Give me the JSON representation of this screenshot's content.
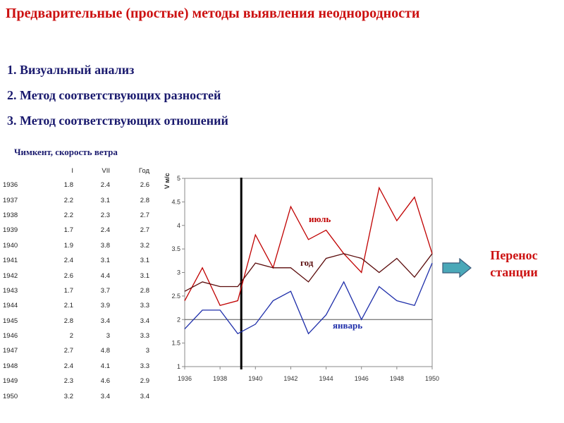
{
  "title": "Предварительные (простые) методы выявления неоднородности",
  "methods": [
    "1. Визуальный анализ",
    "2. Метод соответствующих разностей",
    "3. Метод соответствующих отношений"
  ],
  "table": {
    "title": "Чимкент, скорость ветра",
    "headers": [
      "",
      "I",
      "VII",
      "Год"
    ],
    "rows": [
      [
        "1936",
        "1.8",
        "2.4",
        "2.6"
      ],
      [
        "1937",
        "2.2",
        "3.1",
        "2.8"
      ],
      [
        "1938",
        "2.2",
        "2.3",
        "2.7"
      ],
      [
        "1939",
        "1.7",
        "2.4",
        "2.7"
      ],
      [
        "1940",
        "1.9",
        "3.8",
        "3.2"
      ],
      [
        "1941",
        "2.4",
        "3.1",
        "3.1"
      ],
      [
        "1942",
        "2.6",
        "4.4",
        "3.1"
      ],
      [
        "1943",
        "1.7",
        "3.7",
        "2.8"
      ],
      [
        "1944",
        "2.1",
        "3.9",
        "3.3"
      ],
      [
        "1945",
        "2.8",
        "3.4",
        "3.4"
      ],
      [
        "1946",
        "2",
        "3",
        "3.3"
      ],
      [
        "1947",
        "2.7",
        "4.8",
        "3"
      ],
      [
        "1948",
        "2.4",
        "4.1",
        "3.3"
      ],
      [
        "1949",
        "2.3",
        "4.6",
        "2.9"
      ],
      [
        "1950",
        "3.2",
        "3.4",
        "3.4"
      ]
    ]
  },
  "chart_data": {
    "type": "line",
    "ylabel": "V м/с",
    "x": [
      1936,
      1937,
      1938,
      1939,
      1940,
      1941,
      1942,
      1943,
      1944,
      1945,
      1946,
      1947,
      1948,
      1949,
      1950
    ],
    "xlim": [
      1936,
      1950
    ],
    "ylim": [
      1,
      5
    ],
    "xticks": [
      "1936",
      "1938",
      "1940",
      "1942",
      "1944",
      "1946",
      "1948",
      "1950"
    ],
    "yticks": [
      "1",
      "1.5",
      "2",
      "2.5",
      "3",
      "3.5",
      "4",
      "4.5",
      "5"
    ],
    "series": [
      {
        "name": "июль",
        "color": "#c00000",
        "values": [
          2.4,
          3.1,
          2.3,
          2.4,
          3.8,
          3.1,
          4.4,
          3.7,
          3.9,
          3.4,
          3.0,
          4.8,
          4.1,
          4.6,
          3.4
        ]
      },
      {
        "name": "год",
        "color": "#5a0a0a",
        "values": [
          2.6,
          2.8,
          2.7,
          2.7,
          3.2,
          3.1,
          3.1,
          2.8,
          3.3,
          3.4,
          3.3,
          3.0,
          3.3,
          2.9,
          3.4
        ]
      },
      {
        "name": "январь",
        "color": "#1f2faa",
        "values": [
          1.8,
          2.2,
          2.2,
          1.7,
          1.9,
          2.4,
          2.6,
          1.7,
          2.1,
          2.8,
          2.0,
          2.7,
          2.4,
          2.3,
          3.2
        ]
      }
    ],
    "reference_line": 2,
    "break_year": 1939.2,
    "grid": false
  },
  "transfer": {
    "label_line1": "Перенос",
    "label_line2": "станции",
    "arrow_color": "#4aa8b8"
  }
}
